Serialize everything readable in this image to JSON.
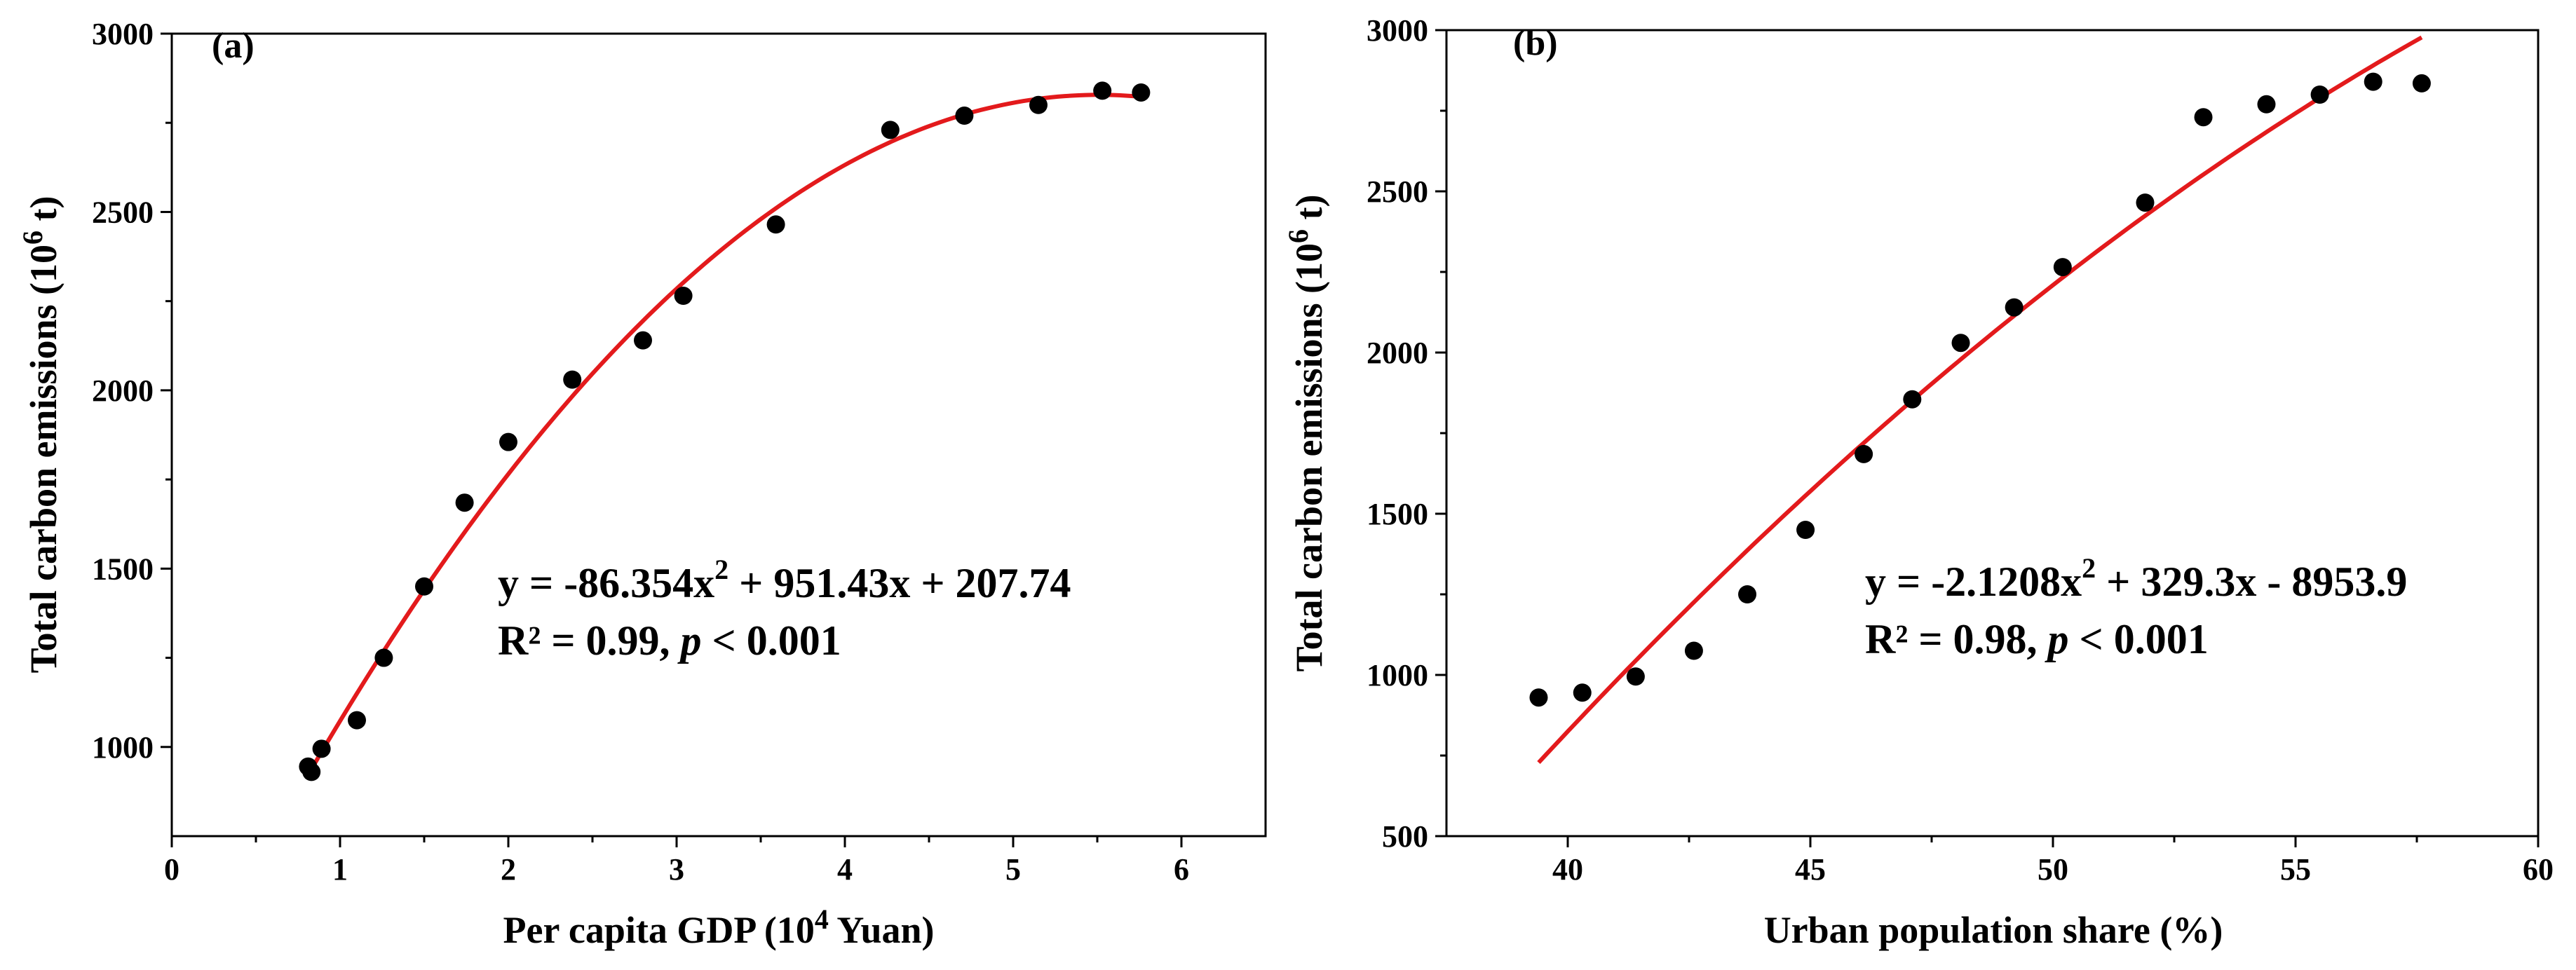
{
  "chart_data": [
    {
      "type": "scatter",
      "panel_label": "(a)",
      "xlabel": "Per capita GDP (10",
      "xlabel_sup": "4",
      "xlabel_end": " Yuan)",
      "ylabel": "Total carbon emissions (10",
      "ylabel_sup": "6",
      "ylabel_end": " t)",
      "xlim": [
        0,
        6.5
      ],
      "ylim": [
        750,
        3000
      ],
      "xticks": [
        0,
        1,
        2,
        3,
        4,
        5,
        6
      ],
      "yticks": [
        1000,
        1500,
        2000,
        2500,
        3000
      ],
      "x": [
        0.81,
        0.83,
        0.89,
        1.1,
        1.26,
        1.5,
        1.74,
        2.0,
        2.38,
        2.8,
        3.04,
        3.59,
        4.27,
        4.71,
        5.15,
        5.53,
        5.76
      ],
      "y": [
        945,
        930,
        995,
        1075,
        1250,
        1450,
        1685,
        1855,
        2030,
        2140,
        2265,
        2465,
        2730,
        2770,
        2800,
        2840,
        2835
      ],
      "fit": {
        "a": -86.354,
        "b": 951.43,
        "c": 207.74,
        "x_start": 0.81,
        "x_end": 5.76,
        "color": "#e31a1c"
      },
      "equation_prefix": "y = -86.354x",
      "equation_sup": "2",
      "equation_suffix": " + 951.43x + 207.74",
      "r2_text": "R² = 0.99, ",
      "p_symbol": "p",
      "p_text": " < 0.001"
    },
    {
      "type": "scatter",
      "panel_label": "(b)",
      "xlabel": "Urban population share (%)",
      "ylabel": "Total carbon emissions (10",
      "ylabel_sup": "6",
      "ylabel_end": " t)",
      "xlim": [
        37.5,
        60
      ],
      "ylim": [
        500,
        3000
      ],
      "xticks": [
        40,
        45,
        50,
        55,
        60
      ],
      "yticks": [
        500,
        1000,
        1500,
        2000,
        2500,
        3000
      ],
      "x": [
        39.4,
        40.3,
        41.4,
        42.6,
        43.7,
        44.9,
        46.1,
        47.1,
        48.1,
        49.2,
        50.2,
        51.9,
        53.1,
        54.4,
        55.5,
        56.6,
        57.6
      ],
      "y": [
        930,
        945,
        995,
        1075,
        1250,
        1450,
        1685,
        1855,
        2030,
        2140,
        2265,
        2465,
        2730,
        2770,
        2800,
        2840,
        2835
      ],
      "fit": {
        "a": -2.1208,
        "b": 329.3,
        "c": -8953.9,
        "x_start": 39.4,
        "x_end": 57.6,
        "color": "#e31a1c"
      },
      "equation_prefix": "y = -2.1208x",
      "equation_sup": "2",
      "equation_suffix": " + 329.3x - 8953.9",
      "r2_text": "R² = 0.98,  ",
      "p_symbol": "p",
      "p_text": " < 0.001"
    }
  ]
}
